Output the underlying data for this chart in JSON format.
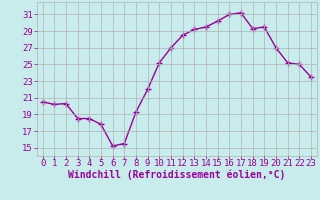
{
  "x": [
    0,
    1,
    2,
    3,
    4,
    5,
    6,
    7,
    8,
    9,
    10,
    11,
    12,
    13,
    14,
    15,
    16,
    17,
    18,
    19,
    20,
    21,
    22,
    23
  ],
  "y": [
    20.5,
    20.2,
    20.3,
    18.5,
    18.5,
    17.8,
    15.2,
    15.5,
    19.3,
    22.0,
    25.2,
    27.0,
    28.5,
    29.2,
    29.5,
    30.2,
    31.0,
    31.2,
    29.3,
    29.5,
    27.0,
    25.2,
    25.0,
    23.5
  ],
  "line_color": "#990099",
  "marker": "+",
  "marker_size": 4,
  "bg_color": "#c8ecec",
  "grid_color": "#b0b0b0",
  "xlabel": "Windchill (Refroidissement éolien,°C)",
  "ylabel_ticks": [
    15,
    17,
    19,
    21,
    23,
    25,
    27,
    29,
    31
  ],
  "xlim": [
    -0.5,
    23.5
  ],
  "ylim": [
    14.0,
    32.5
  ],
  "xticks": [
    0,
    1,
    2,
    3,
    4,
    5,
    6,
    7,
    8,
    9,
    10,
    11,
    12,
    13,
    14,
    15,
    16,
    17,
    18,
    19,
    20,
    21,
    22,
    23
  ],
  "tick_label_color": "#990099",
  "xlabel_color": "#990099",
  "line_width": 1.0,
  "tick_fontsize": 6.5,
  "xlabel_fontsize": 7.0
}
